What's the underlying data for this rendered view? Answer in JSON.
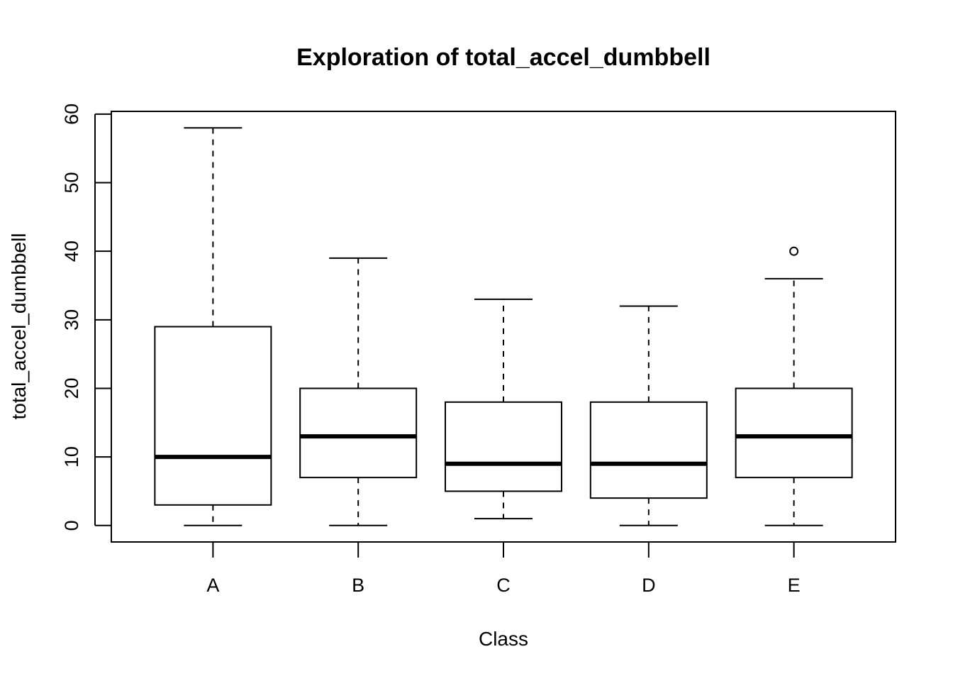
{
  "chart_data": {
    "type": "boxplot",
    "title": "Exploration of  total_accel_dumbbell",
    "xlabel": "Class",
    "ylabel": "total_accel_dumbbell",
    "ylim": [
      -2.4,
      60.4
    ],
    "yticks": [
      0,
      10,
      20,
      30,
      40,
      50,
      60
    ],
    "grid": false,
    "categories": [
      "A",
      "B",
      "C",
      "D",
      "E"
    ],
    "boxes": [
      {
        "category": "A",
        "whisker_low": 0,
        "q1": 3,
        "median": 10,
        "q3": 29,
        "whisker_high": 58,
        "outliers": []
      },
      {
        "category": "B",
        "whisker_low": 0,
        "q1": 7,
        "median": 13,
        "q3": 20,
        "whisker_high": 39,
        "outliers": []
      },
      {
        "category": "C",
        "whisker_low": 1,
        "q1": 5,
        "median": 9,
        "q3": 18,
        "whisker_high": 33,
        "outliers": []
      },
      {
        "category": "D",
        "whisker_low": 0,
        "q1": 4,
        "median": 9,
        "q3": 18,
        "whisker_high": 32,
        "outliers": []
      },
      {
        "category": "E",
        "whisker_low": 0,
        "q1": 7,
        "median": 13,
        "q3": 20,
        "whisker_high": 36,
        "outliers": [
          40
        ]
      }
    ]
  }
}
